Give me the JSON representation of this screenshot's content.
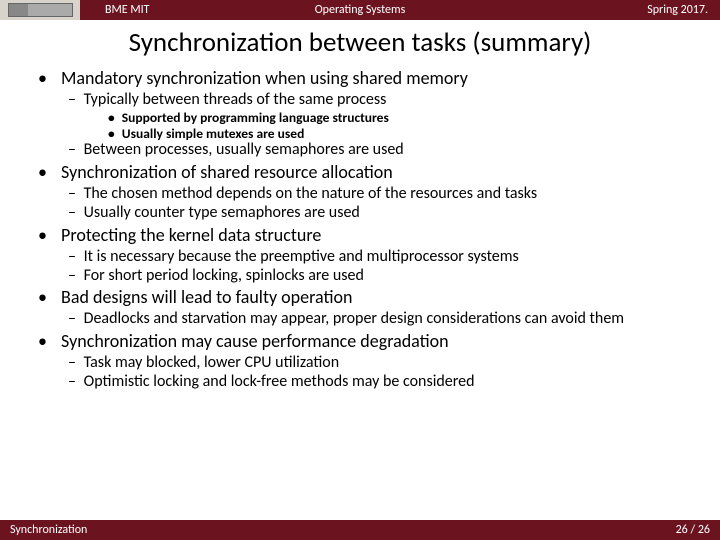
{
  "header": {
    "left": "BME MIT",
    "center": "Operating Systems",
    "right": "Spring 2017."
  },
  "title": "Synchronization between tasks (summary)",
  "bullets": [
    {
      "text": "Mandatory synchronization when using shared memory",
      "children": [
        {
          "text": "Typically between threads of the same process",
          "children": [
            {
              "text": "Supported by programming language structures"
            },
            {
              "text": "Usually simple mutexes are used"
            }
          ]
        },
        {
          "text": "Between processes, usually semaphores are used"
        }
      ]
    },
    {
      "text": "Synchronization of shared resource allocation",
      "children": [
        {
          "text": "The chosen method depends on the nature of the resources and tasks"
        },
        {
          "text": "Usually counter type semaphores are used"
        }
      ]
    },
    {
      "text": "Protecting the kernel data structure",
      "children": [
        {
          "text": "It is necessary because the preemptive and multiprocessor systems"
        },
        {
          "text": "For short period locking, spinlocks are used"
        }
      ]
    },
    {
      "text": "Bad designs will lead to faulty operation",
      "children": [
        {
          "text": "Deadlocks and starvation may appear, proper design considerations can avoid them"
        }
      ]
    },
    {
      "text": "Synchronization may cause performance degradation",
      "children": [
        {
          "text": "Task may blocked, lower CPU utilization"
        },
        {
          "text": "Optimistic locking and lock-free methods may be considered"
        }
      ]
    }
  ],
  "footer": {
    "left": "Synchronization",
    "page_current": "26",
    "page_total": "26"
  },
  "colors": {
    "header_bg": "#6b1420",
    "text": "#000000",
    "header_text": "#ffffff"
  }
}
